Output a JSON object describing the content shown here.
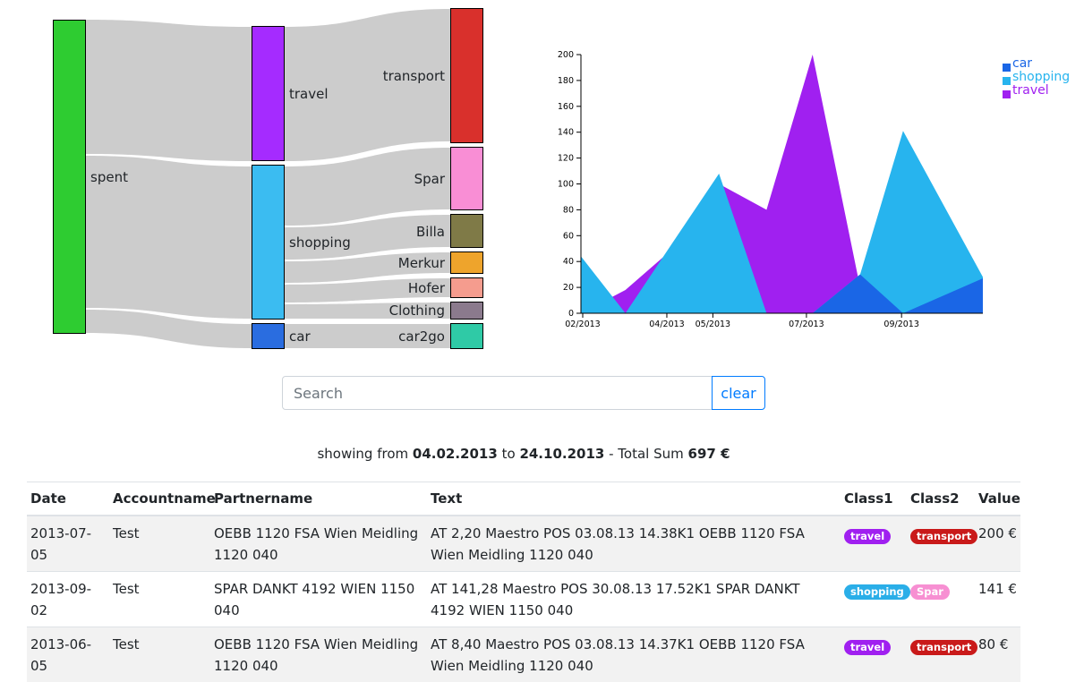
{
  "sankey": {
    "nodes": {
      "spent": "spent",
      "travel": "travel",
      "shopping": "shopping",
      "car": "car",
      "transport": "transport",
      "spar": "Spar",
      "billa": "Billa",
      "merkur": "Merkur",
      "hofer": "Hofer",
      "clothing": "Clothing",
      "car2go": "car2go"
    },
    "colors": {
      "spent": "#2ecc31",
      "travel": "#a52bff",
      "shopping": "#3bbcf1",
      "car": "#2a6de0",
      "transport": "#d9302c",
      "spar": "#f98ed5",
      "billa": "#7f7a47",
      "merkur": "#eea42c",
      "hofer": "#f59c8e",
      "clothing": "#8b7a8d",
      "car2go": "#2fcaa6",
      "link": "#cccccc"
    }
  },
  "chart_data": {
    "type": "area",
    "stacking": "overlapping",
    "x": [
      "2013-02-04",
      "2013-03-05",
      "2013-04-05",
      "2013-05-05",
      "2013-06-05",
      "2013-07-05",
      "2013-08-05",
      "2013-09-02",
      "2013-10-24"
    ],
    "series": [
      {
        "name": "travel",
        "color": "#a020f0",
        "values": [
          0,
          18,
          50,
          100,
          80,
          200,
          20,
          0,
          0
        ]
      },
      {
        "name": "shopping",
        "color": "#27b4ee",
        "values": [
          44,
          0,
          55,
          108,
          0,
          0,
          30,
          141,
          28
        ]
      },
      {
        "name": "car",
        "color": "#1a66e6",
        "values": [
          0,
          0,
          0,
          0,
          0,
          0,
          30,
          0,
          27
        ]
      }
    ],
    "ylim": [
      0,
      200
    ],
    "yticks": [
      0,
      20,
      40,
      60,
      80,
      100,
      120,
      140,
      160,
      180,
      200
    ],
    "xtick_labels": [
      "02/2013",
      "04/2013",
      "05/2013",
      "07/2013",
      "09/2013"
    ],
    "legend": [
      "car",
      "shopping",
      "travel"
    ],
    "legend_position": "top-right",
    "title": "",
    "xlabel": "",
    "ylabel": ""
  },
  "search": {
    "placeholder": "Search",
    "value": "",
    "clear_label": "clear"
  },
  "summary": {
    "prefix": "showing from",
    "from": "04.02.2013",
    "to_word": "to",
    "to": "24.10.2013",
    "sum_label": "- Total Sum",
    "sum": "697 €"
  },
  "table": {
    "headers": [
      "Date",
      "Accountname",
      "Partnername",
      "Text",
      "Class1",
      "Class2",
      "Value"
    ],
    "rows": [
      {
        "date": "2013-07-05",
        "account": "Test",
        "partner": "OEBB 1120 FSA Wien Meidling 1120 040",
        "text": "AT 2,20 Maestro POS 03.08.13 14.38K1 OEBB 1120 FSA Wien Meidling 1120 040",
        "class1": "travel",
        "class1_color": "#a020f0",
        "class2": "transport",
        "class2_color": "#c91a1a",
        "value": "200 €"
      },
      {
        "date": "2013-09-02",
        "account": "Test",
        "partner": "SPAR DANKT 4192 WIEN 1150 040",
        "text": "AT 141,28 Maestro POS 30.08.13 17.52K1 SPAR DANKT 4192 WIEN 1150 040",
        "class1": "shopping",
        "class1_color": "#2aaee8",
        "class2": "Spar",
        "class2_color": "#f78fd2",
        "value": "141 €"
      },
      {
        "date": "2013-06-05",
        "account": "Test",
        "partner": "OEBB 1120 FSA Wien Meidling 1120 040",
        "text": "AT 8,40 Maestro POS 03.08.13 14.37K1 OEBB 1120 FSA Wien Meidling 1120 040",
        "class1": "travel",
        "class1_color": "#a020f0",
        "class2": "transport",
        "class2_color": "#c91a1a",
        "value": "80 €"
      }
    ]
  }
}
